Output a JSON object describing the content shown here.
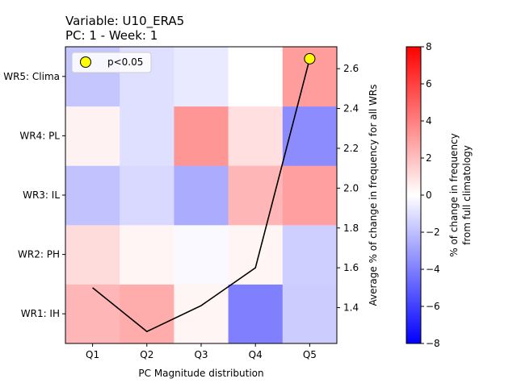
{
  "chart_data": {
    "type": "heatmap",
    "title": "Variable: U10_ERA5",
    "subtitle": "PC: 1 - Week: 1",
    "xlabel": "PC Magnitude distribution",
    "ylabel_right": "Average % of change in frequency for all WRs",
    "colorbar_label_line1": "% of change in frequency",
    "colorbar_label_line2": "from full climatology",
    "x_categories": [
      "Q1",
      "Q2",
      "Q3",
      "Q4",
      "Q5"
    ],
    "y_categories": [
      "WR1: IH",
      "WR2: PH",
      "WR3: IL",
      "WR4: PL",
      "WR5: Clima"
    ],
    "colormap": "bwr",
    "color_range": [
      -8,
      8
    ],
    "colorbar_ticks": [
      -8,
      -6,
      -4,
      -2,
      0,
      2,
      4,
      6,
      8
    ],
    "heatmap_values": [
      [
        2.3,
        2.6,
        0.3,
        -4.0,
        -1.6
      ],
      [
        1.1,
        0.3,
        -0.2,
        0.3,
        -1.5
      ],
      [
        -1.9,
        -1.2,
        -2.6,
        2.3,
        3.0
      ],
      [
        0.4,
        -1.0,
        3.3,
        1.0,
        -3.6
      ],
      [
        -1.8,
        -1.0,
        -0.7,
        0.0,
        3.1
      ]
    ],
    "line_series": {
      "x": [
        "Q1",
        "Q2",
        "Q3",
        "Q4",
        "Q5"
      ],
      "values": [
        1.5,
        1.28,
        1.41,
        1.6,
        2.65
      ]
    },
    "right_axis_ticks": [
      1.4,
      1.6,
      1.8,
      2.0,
      2.2,
      2.4,
      2.6
    ],
    "right_axis_range": [
      1.22,
      2.71
    ],
    "significant_points": [
      {
        "x": "Q5",
        "value": 2.65
      }
    ],
    "legend": {
      "label": "p<0.05",
      "marker_color": "#ffff00",
      "placement": "top-left"
    }
  }
}
